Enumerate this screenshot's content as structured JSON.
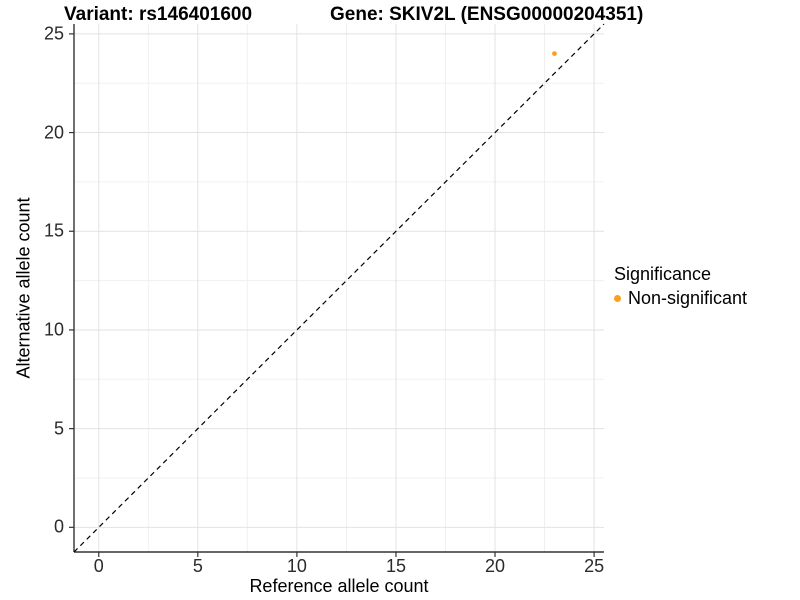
{
  "titles": {
    "variant": "Variant: rs146401600",
    "gene": "Gene: SKIV2L (ENSG00000204351)"
  },
  "chart_data": {
    "type": "scatter",
    "title": "Variant: rs146401600   Gene: SKIV2L (ENSG00000204351)",
    "xlabel": "Reference allele count",
    "ylabel": "Alternative allele count",
    "xlim": [
      -1.25,
      25.5
    ],
    "ylim": [
      -1.25,
      25.5
    ],
    "x_ticks": [
      0,
      5,
      10,
      15,
      20,
      25
    ],
    "y_ticks": [
      0,
      5,
      10,
      15,
      20,
      25
    ],
    "x_minor": [
      2.5,
      7.5,
      12.5,
      17.5,
      22.5
    ],
    "y_minor": [
      2.5,
      7.5,
      12.5,
      17.5,
      22.5
    ],
    "grid": true,
    "series": [
      {
        "name": "Non-significant",
        "color": "#F9A11B",
        "points": [
          {
            "x": 23,
            "y": 24
          }
        ]
      }
    ],
    "reference_line": {
      "type": "identity",
      "style": "dashed",
      "color": "#000000"
    },
    "legend": {
      "title": "Significance",
      "position": "right",
      "items": [
        {
          "label": "Non-significant",
          "color": "#F9A11B"
        }
      ]
    },
    "style": {
      "panel_background": "#FFFFFF",
      "major_grid_color": "#E2E2E2",
      "minor_grid_color": "#F0F0F0",
      "axis_line_color": "#333333",
      "accent_orange": "#F9A11B"
    }
  }
}
